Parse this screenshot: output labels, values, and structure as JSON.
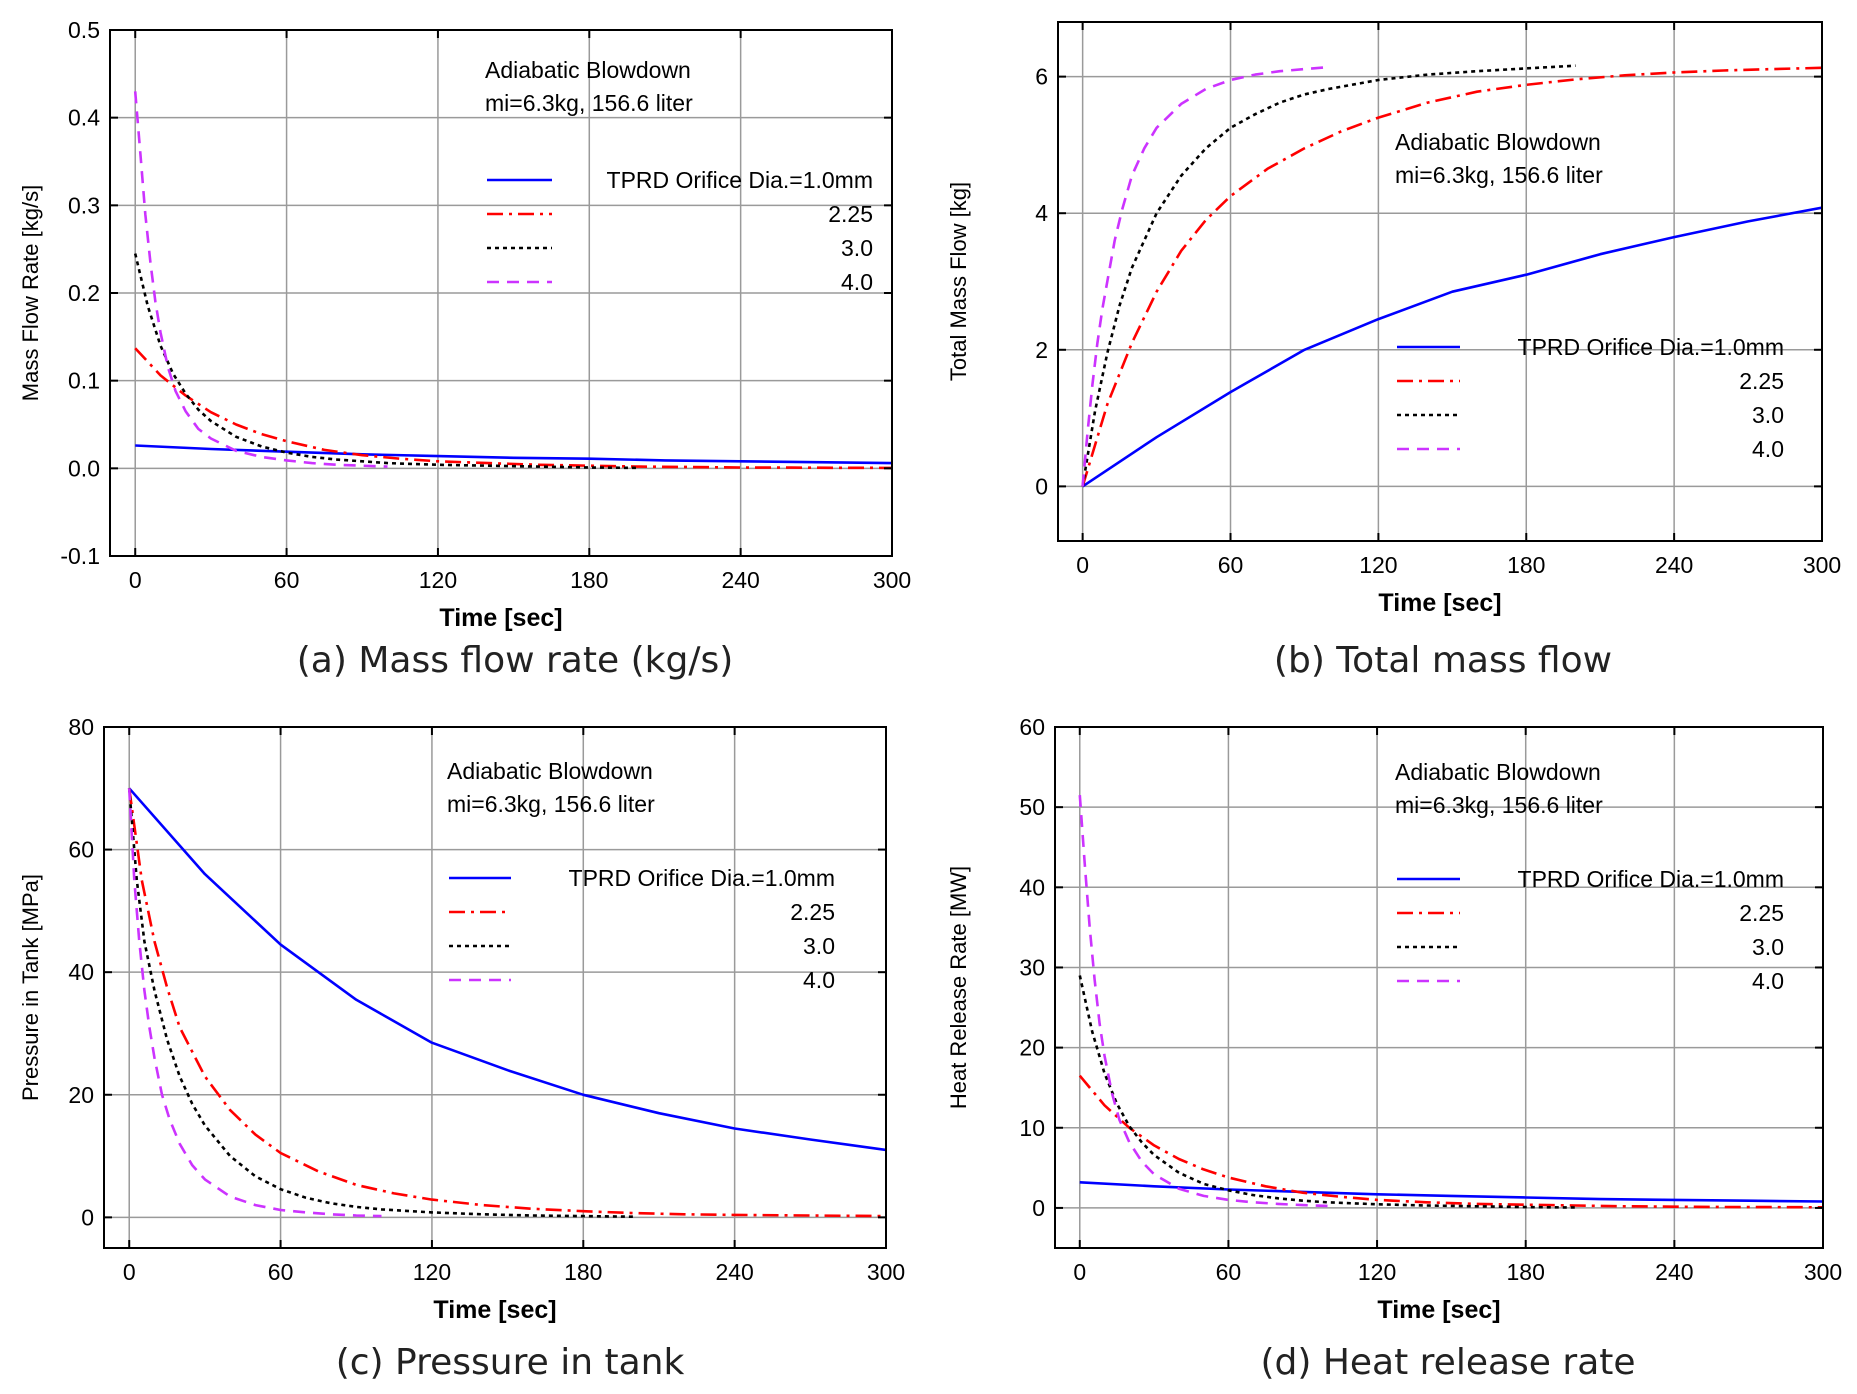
{
  "colors": {
    "d1": "#0000ff",
    "d2": "#ff0000",
    "d3": "#000000",
    "d4": "#cc33ff",
    "grid": "#9a9a9a",
    "axis": "#000000"
  },
  "chart_data": [
    {
      "id": "a",
      "type": "line",
      "caption": "(a) Mass flow rate (kg/s)",
      "xlabel": "Time [sec]",
      "ylabel": "Mass Flow Rate [kg/s]",
      "xlim": [
        -10,
        300
      ],
      "ylim": [
        -0.1,
        0.5
      ],
      "xticks": [
        0,
        60,
        120,
        180,
        240,
        300
      ],
      "xtick_labels": [
        "0",
        "60",
        "120",
        "180",
        "240",
        "300"
      ],
      "yticks": [
        -0.1,
        0.0,
        0.1,
        0.2,
        0.3,
        0.4,
        0.5
      ],
      "ytick_labels": [
        "-0.1",
        "0.0",
        "0.1",
        "0.2",
        "0.3",
        "0.4",
        "0.5"
      ],
      "annotation": [
        "Adiabatic Blowdown",
        "mi=6.3kg, 156.6 liter"
      ],
      "legend_entries": [
        "TPRD Orifice Dia.=1.0mm",
        "2.25",
        "3.0",
        "4.0"
      ],
      "legend_position": "upper-right",
      "series": [
        {
          "name": "1.0mm",
          "x": [
            0,
            30,
            60,
            90,
            120,
            150,
            180,
            210,
            240,
            270,
            300
          ],
          "y": [
            0.026,
            0.022,
            0.019,
            0.016,
            0.014,
            0.012,
            0.011,
            0.009,
            0.008,
            0.007,
            0.006
          ]
        },
        {
          "name": "2.25",
          "x": [
            0,
            10,
            20,
            30,
            40,
            50,
            60,
            75,
            90,
            105,
            120,
            140,
            160,
            180,
            200,
            220,
            240,
            260,
            280,
            300
          ],
          "y": [
            0.137,
            0.106,
            0.083,
            0.064,
            0.05,
            0.039,
            0.031,
            0.021,
            0.015,
            0.011,
            0.008,
            0.006,
            0.004,
            0.003,
            0.002,
            0.0015,
            0.001,
            0.0008,
            0.0006,
            0.0005
          ]
        },
        {
          "name": "3.0",
          "x": [
            0,
            5,
            10,
            15,
            20,
            25,
            30,
            40,
            50,
            60,
            70,
            80,
            90,
            100,
            120,
            140,
            160,
            180,
            200
          ],
          "y": [
            0.245,
            0.185,
            0.14,
            0.108,
            0.085,
            0.067,
            0.054,
            0.036,
            0.025,
            0.018,
            0.013,
            0.01,
            0.008,
            0.006,
            0.004,
            0.003,
            0.002,
            0.001,
            0.0005
          ]
        },
        {
          "name": "4.0",
          "x": [
            0,
            2,
            4,
            6,
            8,
            10,
            13,
            16,
            20,
            25,
            30,
            40,
            50,
            60,
            70,
            80,
            90,
            100
          ],
          "y": [
            0.43,
            0.36,
            0.29,
            0.235,
            0.19,
            0.155,
            0.115,
            0.088,
            0.065,
            0.045,
            0.034,
            0.02,
            0.013,
            0.009,
            0.006,
            0.004,
            0.003,
            0.002
          ]
        }
      ]
    },
    {
      "id": "b",
      "type": "line",
      "caption": "(b) Total mass flow",
      "xlabel": "Time [sec]",
      "ylabel": "Total Mass Flow [kg]",
      "xlim": [
        -10,
        300
      ],
      "ylim": [
        -0.8,
        6.8
      ],
      "xticks": [
        0,
        60,
        120,
        180,
        240,
        300
      ],
      "xtick_labels": [
        "0",
        "60",
        "120",
        "180",
        "240",
        "300"
      ],
      "yticks": [
        0,
        2,
        4,
        6
      ],
      "ytick_labels": [
        "0",
        "2",
        "4",
        "6"
      ],
      "annotation": [
        "Adiabatic Blowdown",
        "mi=6.3kg, 156.6 liter"
      ],
      "legend_entries": [
        "TPRD Orifice Dia.=1.0mm",
        "2.25",
        "3.0",
        "4.0"
      ],
      "legend_position": "lower-right",
      "series": [
        {
          "name": "1.0mm",
          "x": [
            0,
            30,
            60,
            90,
            120,
            150,
            180,
            210,
            240,
            270,
            300
          ],
          "y": [
            0,
            0.72,
            1.38,
            2.0,
            2.45,
            2.85,
            3.1,
            3.4,
            3.65,
            3.88,
            4.08
          ]
        },
        {
          "name": "2.25",
          "x": [
            0,
            10,
            20,
            30,
            40,
            50,
            60,
            75,
            90,
            105,
            120,
            140,
            160,
            180,
            200,
            220,
            240,
            260,
            280,
            300
          ],
          "y": [
            0,
            1.2,
            2.1,
            2.85,
            3.45,
            3.9,
            4.25,
            4.65,
            4.95,
            5.2,
            5.4,
            5.62,
            5.78,
            5.88,
            5.96,
            6.02,
            6.06,
            6.09,
            6.11,
            6.13
          ]
        },
        {
          "name": "3.0",
          "x": [
            0,
            5,
            10,
            15,
            20,
            30,
            40,
            50,
            60,
            70,
            80,
            90,
            100,
            120,
            140,
            160,
            180,
            200
          ],
          "y": [
            0,
            1.1,
            1.95,
            2.65,
            3.2,
            4.0,
            4.55,
            4.95,
            5.25,
            5.45,
            5.62,
            5.74,
            5.82,
            5.95,
            6.03,
            6.08,
            6.12,
            6.16
          ]
        },
        {
          "name": "4.0",
          "x": [
            0,
            2,
            4,
            6,
            8,
            10,
            13,
            16,
            20,
            25,
            30,
            40,
            50,
            60,
            70,
            80,
            90,
            100
          ],
          "y": [
            0,
            0.8,
            1.5,
            2.1,
            2.6,
            3.0,
            3.6,
            4.05,
            4.55,
            4.95,
            5.25,
            5.6,
            5.82,
            5.95,
            6.03,
            6.08,
            6.11,
            6.14
          ]
        }
      ]
    },
    {
      "id": "c",
      "type": "line",
      "caption": "(c) Pressure in tank",
      "xlabel": "Time [sec]",
      "ylabel": "Pressure in Tank [MPa]",
      "xlim": [
        -10,
        300
      ],
      "ylim": [
        -5,
        80
      ],
      "xticks": [
        0,
        60,
        120,
        180,
        240,
        300
      ],
      "xtick_labels": [
        "0",
        "60",
        "120",
        "180",
        "240",
        "300"
      ],
      "yticks": [
        0,
        20,
        40,
        60,
        80
      ],
      "ytick_labels": [
        "0",
        "20",
        "40",
        "60",
        "80"
      ],
      "annotation": [
        "Adiabatic Blowdown",
        "mi=6.3kg, 156.6 liter"
      ],
      "legend_entries": [
        "TPRD Orifice Dia.=1.0mm",
        "2.25",
        "3.0",
        "4.0"
      ],
      "legend_position": "upper-right",
      "series": [
        {
          "name": "1.0mm",
          "x": [
            0,
            30,
            60,
            90,
            120,
            150,
            180,
            210,
            240,
            270,
            300
          ],
          "y": [
            70,
            56,
            44.5,
            35.5,
            28.5,
            24,
            20,
            17,
            14.5,
            12.7,
            11
          ]
        },
        {
          "name": "2.25",
          "x": [
            0,
            5,
            10,
            15,
            20,
            30,
            40,
            50,
            60,
            75,
            90,
            105,
            120,
            140,
            160,
            180,
            200,
            220,
            240,
            270,
            300
          ],
          "y": [
            70,
            55,
            45,
            37.5,
            31,
            23,
            17.5,
            13.5,
            10.5,
            7.5,
            5.3,
            3.9,
            2.9,
            2.0,
            1.4,
            1.0,
            0.7,
            0.5,
            0.4,
            0.3,
            0.2
          ]
        },
        {
          "name": "3.0",
          "x": [
            0,
            3,
            6,
            10,
            15,
            20,
            25,
            30,
            40,
            50,
            60,
            70,
            80,
            90,
            100,
            120,
            140,
            160,
            180,
            200
          ],
          "y": [
            70,
            55,
            45,
            37,
            29,
            23,
            18.5,
            15,
            10,
            6.7,
            4.6,
            3.2,
            2.3,
            1.7,
            1.3,
            0.8,
            0.5,
            0.3,
            0.2,
            0.1
          ]
        },
        {
          "name": "4.0",
          "x": [
            0,
            2,
            4,
            6,
            8,
            10,
            13,
            16,
            20,
            25,
            30,
            40,
            50,
            60,
            70,
            80,
            90,
            100
          ],
          "y": [
            70,
            55,
            45,
            37,
            31,
            26,
            20,
            16,
            12,
            8.5,
            6.2,
            3.4,
            2.0,
            1.2,
            0.8,
            0.5,
            0.3,
            0.2
          ]
        }
      ]
    },
    {
      "id": "d",
      "type": "line",
      "caption": "(d) Heat release rate",
      "xlabel": "Time [sec]",
      "ylabel": "Heat Release Rate [MW]",
      "xlim": [
        -10,
        300
      ],
      "ylim": [
        -5,
        60
      ],
      "xticks": [
        0,
        60,
        120,
        180,
        240,
        300
      ],
      "xtick_labels": [
        "0",
        "60",
        "120",
        "180",
        "240",
        "300"
      ],
      "yticks": [
        0,
        10,
        20,
        30,
        40,
        50,
        60
      ],
      "ytick_labels": [
        "0",
        "10",
        "20",
        "30",
        "40",
        "50",
        "60"
      ],
      "annotation": [
        "Adiabatic Blowdown",
        "mi=6.3kg, 156.6 liter"
      ],
      "legend_entries": [
        "TPRD Orifice Dia.=1.0mm",
        "2.25",
        "3.0",
        "4.0"
      ],
      "legend_position": "upper-right",
      "series": [
        {
          "name": "1.0mm",
          "x": [
            0,
            30,
            60,
            90,
            120,
            150,
            180,
            210,
            240,
            270,
            300
          ],
          "y": [
            3.2,
            2.7,
            2.3,
            2.0,
            1.7,
            1.5,
            1.3,
            1.1,
            1.0,
            0.9,
            0.8
          ]
        },
        {
          "name": "2.25",
          "x": [
            0,
            10,
            20,
            30,
            40,
            50,
            60,
            75,
            90,
            105,
            120,
            140,
            160,
            180,
            200,
            220,
            240,
            260,
            280,
            300
          ],
          "y": [
            16.5,
            12.8,
            10,
            7.8,
            6.1,
            4.8,
            3.8,
            2.7,
            1.9,
            1.4,
            1.0,
            0.7,
            0.5,
            0.4,
            0.3,
            0.2,
            0.15,
            0.12,
            0.1,
            0.08
          ]
        },
        {
          "name": "3.0",
          "x": [
            0,
            5,
            10,
            15,
            20,
            25,
            30,
            40,
            50,
            60,
            70,
            80,
            90,
            100,
            120,
            140,
            160,
            180,
            200
          ],
          "y": [
            29,
            22,
            16.8,
            13,
            10.2,
            8.2,
            6.6,
            4.4,
            3.0,
            2.2,
            1.6,
            1.2,
            0.9,
            0.7,
            0.45,
            0.3,
            0.2,
            0.1,
            0.05
          ]
        },
        {
          "name": "4.0",
          "x": [
            0,
            2,
            4,
            6,
            8,
            10,
            13,
            16,
            20,
            25,
            30,
            40,
            50,
            60,
            70,
            80,
            90,
            100
          ],
          "y": [
            51.5,
            43,
            35,
            28.5,
            23,
            19,
            14.3,
            11,
            8.2,
            5.8,
            4.2,
            2.4,
            1.5,
            1.0,
            0.7,
            0.5,
            0.35,
            0.25
          ]
        }
      ]
    }
  ]
}
